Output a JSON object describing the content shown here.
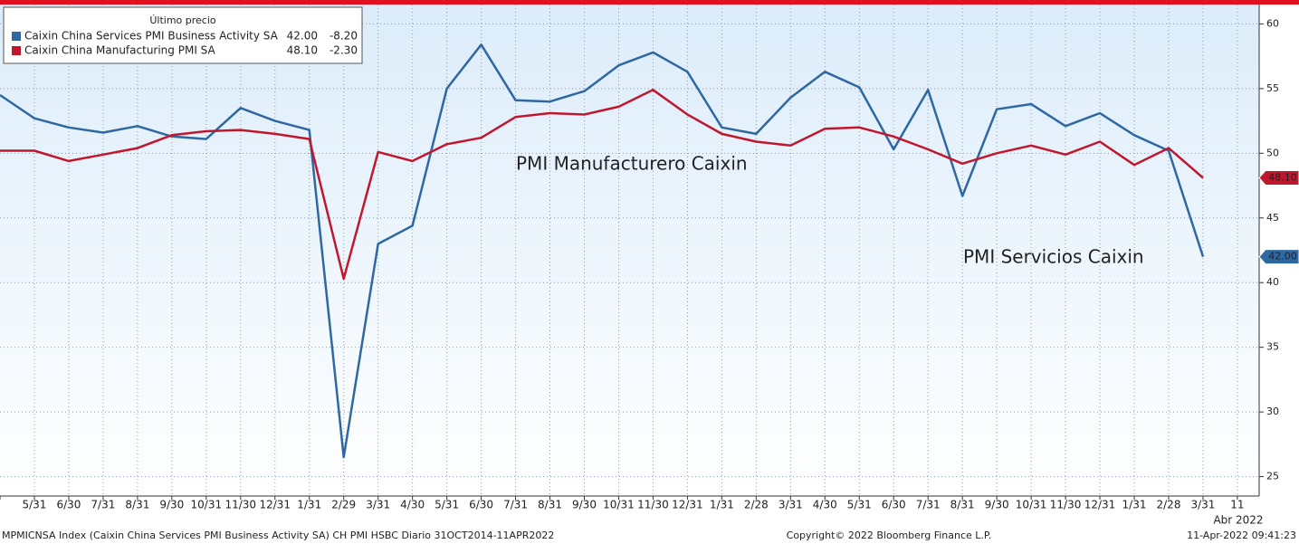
{
  "chart_data": {
    "type": "line",
    "legend_title": "Último precio",
    "categories": [
      null,
      "5/31",
      "6/30",
      "7/31",
      "8/31",
      "9/30",
      "10/31",
      "11/30",
      "12/31",
      "1/31",
      "2/29",
      "3/31",
      "4/30",
      "5/31",
      "6/30",
      "7/31",
      "8/31",
      "9/30",
      "10/31",
      "11/30",
      "12/31",
      "1/31",
      "2/28",
      "3/31",
      "4/30",
      "5/31",
      "6/30",
      "7/31",
      "8/31",
      "9/30",
      "10/31",
      "11/30",
      "12/31",
      "1/31",
      "2/28",
      "3/31",
      "11"
    ],
    "x_year_label": "Abr 2022",
    "series": [
      {
        "name": "Caixin China Services PMI Business Activity SA",
        "color": "#2e68a3",
        "last_price": "42.00",
        "change": "-8.20",
        "values": [
          54.5,
          52.7,
          52.0,
          51.6,
          52.1,
          51.3,
          51.1,
          53.5,
          52.5,
          51.8,
          26.5,
          43.0,
          44.4,
          55.0,
          58.4,
          54.1,
          54.0,
          54.8,
          56.8,
          57.8,
          56.3,
          52.0,
          51.5,
          54.3,
          56.3,
          55.1,
          50.3,
          54.9,
          46.7,
          53.4,
          53.8,
          52.1,
          53.1,
          51.4,
          50.2,
          42.0,
          null
        ]
      },
      {
        "name": "Caixin China Manufacturing PMI SA",
        "color": "#c0172d",
        "last_price": "48.10",
        "change": "-2.30",
        "values": [
          50.2,
          50.2,
          49.4,
          49.9,
          50.4,
          51.4,
          51.7,
          51.8,
          51.5,
          51.1,
          40.3,
          50.1,
          49.4,
          50.7,
          51.2,
          52.8,
          53.1,
          53.0,
          53.6,
          54.9,
          53.0,
          51.5,
          50.9,
          50.6,
          51.9,
          52.0,
          51.3,
          50.3,
          49.2,
          50.0,
          50.6,
          49.9,
          50.9,
          49.1,
          50.4,
          48.1,
          null
        ]
      }
    ],
    "annotations": [
      {
        "text": "PMI Manufacturero Caixin",
        "color": "#c0172d"
      },
      {
        "text": "PMI Servicios Caixin",
        "color": "#5b8fd6"
      }
    ],
    "ylim": [
      23.5,
      61.5
    ],
    "yticks": [
      25,
      30,
      35,
      40,
      45,
      50,
      55,
      60
    ],
    "grid": true,
    "footer_left": "MPMICNSA Index (Caixin China Services PMI Business Activity SA) CH PMI HSBC  Diario 31OCT2014-11APR2022",
    "footer_center": "Copyright© 2022 Bloomberg Finance L.P.",
    "footer_right": "11-Apr-2022 09:41:23"
  }
}
